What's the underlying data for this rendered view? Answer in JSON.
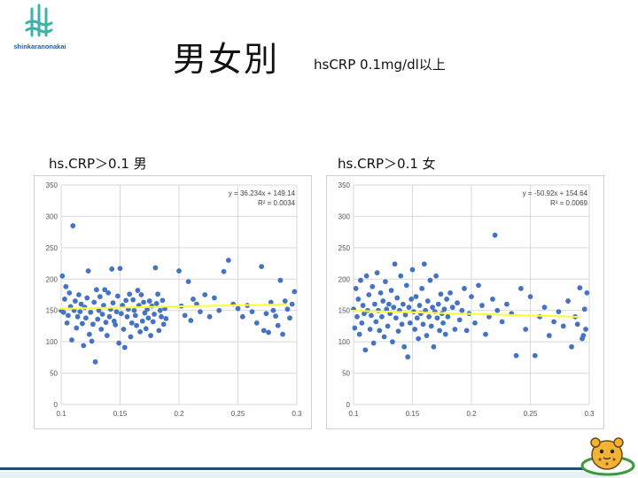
{
  "logo": {
    "icon": "tuning-fork-logo",
    "text": "shinkaranonakai"
  },
  "title": "男女別",
  "subtitle": "hsCRP 0.1mg/dl以上",
  "mascot": {
    "icon": "leopard-mascot"
  },
  "colors": {
    "points": "#4472c4",
    "trend": "#ffff33",
    "grid": "#d9d9d9",
    "logo": "#3bb3a8"
  },
  "chart_data": [
    {
      "type": "scatter",
      "title": "hs.CRP＞0.1 男",
      "xlim": [
        0.1,
        0.3
      ],
      "ylim": [
        0,
        350
      ],
      "xticks": [
        0.1,
        0.15,
        0.2,
        0.25,
        0.3
      ],
      "yticks": [
        0,
        50,
        100,
        150,
        200,
        250,
        300,
        350
      ],
      "xtick_labels": [
        "0.1",
        "0.15",
        "0.2",
        "0.25",
        "0.3"
      ],
      "ytick_labels": [
        "0",
        "50",
        "100",
        "150",
        "200",
        "250",
        "300",
        "350"
      ],
      "grid": true,
      "legend": "none",
      "trendline": {
        "slope": 36.234,
        "intercept": 149.14,
        "equation": "y = 36.234x + 149.14",
        "r2": "R² = 0.0034"
      },
      "points": [
        [
          0.1,
          150
        ],
        [
          0.101,
          205
        ],
        [
          0.102,
          147
        ],
        [
          0.103,
          168
        ],
        [
          0.104,
          188
        ],
        [
          0.105,
          130
        ],
        [
          0.106,
          142
        ],
        [
          0.107,
          178
        ],
        [
          0.108,
          156
        ],
        [
          0.109,
          103
        ],
        [
          0.11,
          285
        ],
        [
          0.111,
          150
        ],
        [
          0.112,
          165
        ],
        [
          0.113,
          122
        ],
        [
          0.114,
          140
        ],
        [
          0.115,
          175
        ],
        [
          0.116,
          148
        ],
        [
          0.117,
          160
        ],
        [
          0.118,
          129
        ],
        [
          0.119,
          94
        ],
        [
          0.12,
          155
        ],
        [
          0.121,
          138
        ],
        [
          0.122,
          170
        ],
        [
          0.123,
          213
        ],
        [
          0.124,
          112
        ],
        [
          0.125,
          147
        ],
        [
          0.126,
          101
        ],
        [
          0.127,
          128
        ],
        [
          0.128,
          163
        ],
        [
          0.129,
          68
        ],
        [
          0.13,
          183
        ],
        [
          0.131,
          136
        ],
        [
          0.132,
          150
        ],
        [
          0.133,
          172
        ],
        [
          0.134,
          120
        ],
        [
          0.135,
          144
        ],
        [
          0.136,
          158
        ],
        [
          0.137,
          183
        ],
        [
          0.138,
          131
        ],
        [
          0.139,
          110
        ],
        [
          0.14,
          178
        ],
        [
          0.141,
          140
        ],
        [
          0.142,
          152
        ],
        [
          0.143,
          216
        ],
        [
          0.144,
          162
        ],
        [
          0.145,
          133
        ],
        [
          0.146,
          127
        ],
        [
          0.147,
          148
        ],
        [
          0.148,
          173
        ],
        [
          0.149,
          98
        ],
        [
          0.15,
          217
        ],
        [
          0.151,
          145
        ],
        [
          0.152,
          158
        ],
        [
          0.153,
          120
        ],
        [
          0.154,
          91
        ],
        [
          0.155,
          166
        ],
        [
          0.156,
          140
        ],
        [
          0.157,
          152
        ],
        [
          0.158,
          176
        ],
        [
          0.159,
          108
        ],
        [
          0.16,
          130
        ],
        [
          0.161,
          167
        ],
        [
          0.162,
          150
        ],
        [
          0.163,
          142
        ],
        [
          0.164,
          126
        ],
        [
          0.165,
          182
        ],
        [
          0.166,
          158
        ],
        [
          0.167,
          116
        ],
        [
          0.168,
          175
        ],
        [
          0.169,
          133
        ],
        [
          0.17,
          163
        ],
        [
          0.171,
          146
        ],
        [
          0.172,
          121
        ],
        [
          0.173,
          152
        ],
        [
          0.174,
          138
        ],
        [
          0.175,
          165
        ],
        [
          0.176,
          110
        ],
        [
          0.177,
          157
        ],
        [
          0.178,
          132
        ],
        [
          0.179,
          144
        ],
        [
          0.18,
          218
        ],
        [
          0.181,
          161
        ],
        [
          0.182,
          176
        ],
        [
          0.183,
          118
        ],
        [
          0.184,
          150
        ],
        [
          0.185,
          140
        ],
        [
          0.186,
          166
        ],
        [
          0.187,
          128
        ],
        [
          0.188,
          153
        ],
        [
          0.189,
          137
        ],
        [
          0.2,
          213
        ],
        [
          0.202,
          157
        ],
        [
          0.205,
          142
        ],
        [
          0.208,
          196
        ],
        [
          0.21,
          134
        ],
        [
          0.212,
          168
        ],
        [
          0.215,
          160
        ],
        [
          0.218,
          148
        ],
        [
          0.222,
          175
        ],
        [
          0.226,
          140
        ],
        [
          0.23,
          170
        ],
        [
          0.234,
          150
        ],
        [
          0.238,
          212
        ],
        [
          0.242,
          230
        ],
        [
          0.246,
          160
        ],
        [
          0.25,
          153
        ],
        [
          0.254,
          140
        ],
        [
          0.258,
          158
        ],
        [
          0.262,
          148
        ],
        [
          0.266,
          130
        ],
        [
          0.27,
          220
        ],
        [
          0.272,
          118
        ],
        [
          0.274,
          145
        ],
        [
          0.276,
          115
        ],
        [
          0.278,
          163
        ],
        [
          0.28,
          150
        ],
        [
          0.282,
          141
        ],
        [
          0.284,
          126
        ],
        [
          0.286,
          198
        ],
        [
          0.288,
          112
        ],
        [
          0.29,
          165
        ],
        [
          0.292,
          152
        ],
        [
          0.294,
          138
        ],
        [
          0.296,
          160
        ],
        [
          0.298,
          180
        ]
      ]
    },
    {
      "type": "scatter",
      "title": "hs.CRP＞0.1 女",
      "xlim": [
        0.1,
        0.3
      ],
      "ylim": [
        0,
        350
      ],
      "xticks": [
        0.1,
        0.15,
        0.2,
        0.25,
        0.3
      ],
      "yticks": [
        0,
        50,
        100,
        150,
        200,
        250,
        300,
        350
      ],
      "xtick_labels": [
        "0.1",
        "0.15",
        "0.2",
        "0.25",
        "0.3"
      ],
      "ytick_labels": [
        "0",
        "50",
        "100",
        "150",
        "200",
        "250",
        "300",
        "350"
      ],
      "grid": true,
      "legend": "none",
      "trendline": {
        "slope": -50.92,
        "intercept": 154.64,
        "equation": "y = -50.92x + 154.64",
        "r2": "R² = 0.0069"
      },
      "points": [
        [
          0.1,
          152
        ],
        [
          0.101,
          122
        ],
        [
          0.102,
          185
        ],
        [
          0.103,
          140
        ],
        [
          0.104,
          168
        ],
        [
          0.105,
          112
        ],
        [
          0.106,
          198
        ],
        [
          0.107,
          130
        ],
        [
          0.108,
          158
        ],
        [
          0.109,
          145
        ],
        [
          0.11,
          87
        ],
        [
          0.111,
          205
        ],
        [
          0.112,
          150
        ],
        [
          0.113,
          175
        ],
        [
          0.114,
          120
        ],
        [
          0.115,
          142
        ],
        [
          0.116,
          188
        ],
        [
          0.117,
          98
        ],
        [
          0.118,
          160
        ],
        [
          0.119,
          132
        ],
        [
          0.12,
          210
        ],
        [
          0.121,
          150
        ],
        [
          0.122,
          118
        ],
        [
          0.123,
          178
        ],
        [
          0.124,
          140
        ],
        [
          0.125,
          165
        ],
        [
          0.126,
          108
        ],
        [
          0.127,
          196
        ],
        [
          0.128,
          152
        ],
        [
          0.129,
          125
        ],
        [
          0.13,
          160
        ],
        [
          0.131,
          145
        ],
        [
          0.132,
          182
        ],
        [
          0.133,
          100
        ],
        [
          0.134,
          155
        ],
        [
          0.135,
          224
        ],
        [
          0.136,
          138
        ],
        [
          0.137,
          170
        ],
        [
          0.138,
          117
        ],
        [
          0.139,
          150
        ],
        [
          0.14,
          205
        ],
        [
          0.141,
          128
        ],
        [
          0.142,
          160
        ],
        [
          0.143,
          92
        ],
        [
          0.144,
          143
        ],
        [
          0.145,
          190
        ],
        [
          0.146,
          76
        ],
        [
          0.147,
          155
        ],
        [
          0.148,
          130
        ],
        [
          0.149,
          168
        ],
        [
          0.15,
          215
        ],
        [
          0.151,
          148
        ],
        [
          0.152,
          120
        ],
        [
          0.153,
          172
        ],
        [
          0.154,
          138
        ],
        [
          0.155,
          105
        ],
        [
          0.156,
          158
        ],
        [
          0.157,
          145
        ],
        [
          0.158,
          185
        ],
        [
          0.159,
          128
        ],
        [
          0.16,
          224
        ],
        [
          0.161,
          150
        ],
        [
          0.162,
          110
        ],
        [
          0.163,
          165
        ],
        [
          0.164,
          140
        ],
        [
          0.165,
          198
        ],
        [
          0.166,
          125
        ],
        [
          0.167,
          155
        ],
        [
          0.168,
          92
        ],
        [
          0.169,
          148
        ],
        [
          0.17,
          205
        ],
        [
          0.171,
          138
        ],
        [
          0.172,
          160
        ],
        [
          0.173,
          118
        ],
        [
          0.174,
          176
        ],
        [
          0.175,
          145
        ],
        [
          0.176,
          130
        ],
        [
          0.177,
          152
        ],
        [
          0.178,
          112
        ],
        [
          0.179,
          168
        ],
        [
          0.18,
          140
        ],
        [
          0.182,
          178
        ],
        [
          0.184,
          155
        ],
        [
          0.186,
          120
        ],
        [
          0.188,
          162
        ],
        [
          0.19,
          135
        ],
        [
          0.192,
          150
        ],
        [
          0.194,
          185
        ],
        [
          0.196,
          118
        ],
        [
          0.198,
          145
        ],
        [
          0.2,
          172
        ],
        [
          0.203,
          130
        ],
        [
          0.206,
          190
        ],
        [
          0.209,
          158
        ],
        [
          0.212,
          112
        ],
        [
          0.215,
          140
        ],
        [
          0.218,
          168
        ],
        [
          0.22,
          270
        ],
        [
          0.222,
          150
        ],
        [
          0.226,
          132
        ],
        [
          0.23,
          160
        ],
        [
          0.234,
          145
        ],
        [
          0.238,
          78
        ],
        [
          0.242,
          185
        ],
        [
          0.246,
          120
        ],
        [
          0.25,
          172
        ],
        [
          0.254,
          78
        ],
        [
          0.258,
          140
        ],
        [
          0.262,
          155
        ],
        [
          0.266,
          110
        ],
        [
          0.27,
          132
        ],
        [
          0.274,
          148
        ],
        [
          0.278,
          125
        ],
        [
          0.282,
          165
        ],
        [
          0.285,
          92
        ],
        [
          0.288,
          140
        ],
        [
          0.29,
          128
        ],
        [
          0.292,
          186
        ],
        [
          0.294,
          105
        ],
        [
          0.296,
          152
        ],
        [
          0.298,
          178
        ],
        [
          0.297,
          120
        ],
        [
          0.295,
          110
        ]
      ]
    }
  ]
}
